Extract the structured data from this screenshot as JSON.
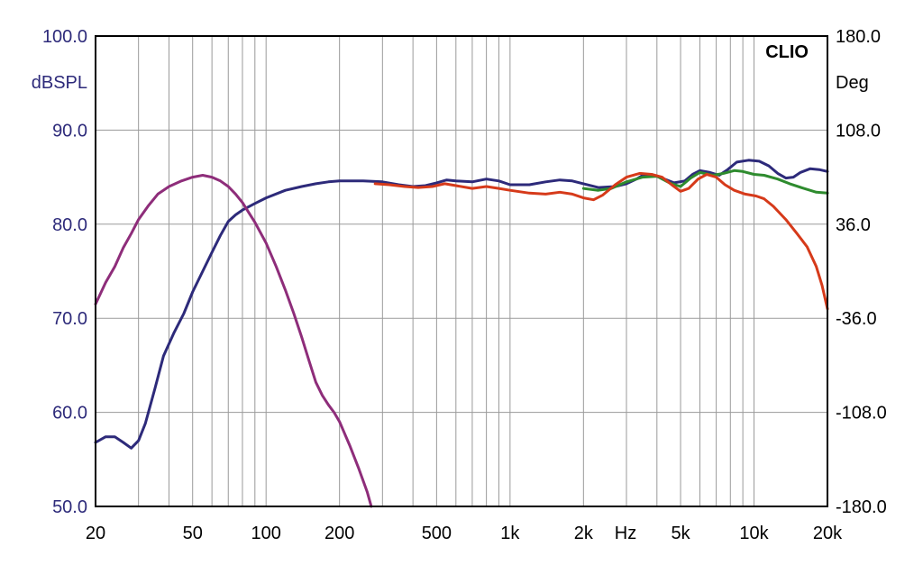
{
  "chart_data": {
    "type": "line",
    "brand": "CLIO",
    "x_scale": "log",
    "x_range": [
      20,
      20000
    ],
    "x_unit": "Hz",
    "x_ticks": [
      {
        "value": 20,
        "label": "20"
      },
      {
        "value": 50,
        "label": "50"
      },
      {
        "value": 100,
        "label": "100"
      },
      {
        "value": 200,
        "label": "200"
      },
      {
        "value": 500,
        "label": "500"
      },
      {
        "value": 1000,
        "label": "1k"
      },
      {
        "value": 2000,
        "label": "2k"
      },
      {
        "value": 5000,
        "label": "5k"
      },
      {
        "value": 10000,
        "label": "10k"
      },
      {
        "value": 20000,
        "label": "20k"
      }
    ],
    "y_left": {
      "label": "dBSPL",
      "range": [
        50,
        100
      ],
      "ticks": [
        "100.0",
        "90.0",
        "80.0",
        "70.0",
        "60.0",
        "50.0"
      ]
    },
    "y_right": {
      "label": "Deg",
      "range": [
        -180,
        180
      ],
      "ticks": [
        "180.0",
        "108.0",
        "36.0",
        "-36.0",
        "-108.0",
        "-180.0"
      ]
    },
    "grid": true,
    "series": [
      {
        "color": "#2d2a7a",
        "points": [
          [
            20,
            56.8
          ],
          [
            22,
            57.4
          ],
          [
            24,
            57.4
          ],
          [
            26,
            56.8
          ],
          [
            28,
            56.2
          ],
          [
            30,
            57.0
          ],
          [
            32,
            58.8
          ],
          [
            35,
            62.5
          ],
          [
            38,
            66.0
          ],
          [
            42,
            68.5
          ],
          [
            46,
            70.5
          ],
          [
            50,
            72.8
          ],
          [
            55,
            75.0
          ],
          [
            60,
            77.0
          ],
          [
            65,
            78.8
          ],
          [
            70,
            80.3
          ],
          [
            75,
            81.0
          ],
          [
            80,
            81.5
          ],
          [
            90,
            82.2
          ],
          [
            100,
            82.8
          ],
          [
            120,
            83.6
          ],
          [
            140,
            84.0
          ],
          [
            160,
            84.3
          ],
          [
            180,
            84.5
          ],
          [
            200,
            84.6
          ],
          [
            250,
            84.6
          ],
          [
            300,
            84.5
          ],
          [
            350,
            84.2
          ],
          [
            400,
            84.0
          ],
          [
            450,
            84.1
          ],
          [
            500,
            84.4
          ],
          [
            550,
            84.7
          ],
          [
            600,
            84.6
          ],
          [
            700,
            84.5
          ],
          [
            800,
            84.8
          ],
          [
            900,
            84.6
          ],
          [
            1000,
            84.2
          ],
          [
            1200,
            84.2
          ],
          [
            1400,
            84.5
          ],
          [
            1600,
            84.7
          ],
          [
            1800,
            84.6
          ],
          [
            2000,
            84.3
          ],
          [
            2300,
            83.9
          ],
          [
            2700,
            84.0
          ],
          [
            3000,
            84.3
          ],
          [
            3300,
            84.8
          ],
          [
            3500,
            85.2
          ],
          [
            3800,
            85.3
          ],
          [
            4200,
            84.9
          ],
          [
            4700,
            84.4
          ],
          [
            5200,
            84.6
          ],
          [
            5600,
            85.3
          ],
          [
            6000,
            85.7
          ],
          [
            6600,
            85.5
          ],
          [
            7200,
            85.2
          ],
          [
            7800,
            85.8
          ],
          [
            8500,
            86.6
          ],
          [
            9500,
            86.8
          ],
          [
            10500,
            86.7
          ],
          [
            11500,
            86.2
          ],
          [
            12500,
            85.4
          ],
          [
            13500,
            84.9
          ],
          [
            14500,
            85.0
          ],
          [
            15500,
            85.5
          ],
          [
            17000,
            85.9
          ],
          [
            18500,
            85.8
          ],
          [
            20000,
            85.6
          ]
        ]
      },
      {
        "color": "#2e8b2e",
        "points": [
          [
            2000,
            83.8
          ],
          [
            2300,
            83.6
          ],
          [
            2600,
            83.8
          ],
          [
            3000,
            84.5
          ],
          [
            3500,
            85.0
          ],
          [
            4000,
            85.1
          ],
          [
            4500,
            84.4
          ],
          [
            5000,
            84.0
          ],
          [
            5500,
            84.9
          ],
          [
            6000,
            85.5
          ],
          [
            6800,
            85.2
          ],
          [
            7500,
            85.4
          ],
          [
            8300,
            85.7
          ],
          [
            9000,
            85.6
          ],
          [
            10000,
            85.3
          ],
          [
            11000,
            85.2
          ],
          [
            12500,
            84.8
          ],
          [
            14000,
            84.3
          ],
          [
            16000,
            83.8
          ],
          [
            18000,
            83.4
          ],
          [
            20000,
            83.3
          ]
        ]
      },
      {
        "color": "#d63a1a",
        "points": [
          [
            280,
            84.3
          ],
          [
            320,
            84.2
          ],
          [
            370,
            84.0
          ],
          [
            420,
            83.9
          ],
          [
            480,
            84.0
          ],
          [
            540,
            84.3
          ],
          [
            600,
            84.1
          ],
          [
            700,
            83.8
          ],
          [
            800,
            84.0
          ],
          [
            900,
            83.8
          ],
          [
            1000,
            83.6
          ],
          [
            1200,
            83.3
          ],
          [
            1400,
            83.2
          ],
          [
            1600,
            83.4
          ],
          [
            1800,
            83.2
          ],
          [
            2000,
            82.8
          ],
          [
            2200,
            82.6
          ],
          [
            2400,
            83.1
          ],
          [
            2700,
            84.2
          ],
          [
            3000,
            85.0
          ],
          [
            3400,
            85.4
          ],
          [
            3800,
            85.3
          ],
          [
            4200,
            85.0
          ],
          [
            4600,
            84.2
          ],
          [
            5000,
            83.5
          ],
          [
            5400,
            83.8
          ],
          [
            5900,
            84.8
          ],
          [
            6400,
            85.3
          ],
          [
            7000,
            85.0
          ],
          [
            7600,
            84.2
          ],
          [
            8300,
            83.6
          ],
          [
            9200,
            83.2
          ],
          [
            10200,
            83.0
          ],
          [
            11000,
            82.7
          ],
          [
            12000,
            81.9
          ],
          [
            13500,
            80.5
          ],
          [
            15000,
            79.0
          ],
          [
            16500,
            77.6
          ],
          [
            18000,
            75.5
          ],
          [
            19000,
            73.5
          ],
          [
            20000,
            71.0
          ]
        ]
      },
      {
        "color": "#8e2d7a",
        "points": [
          [
            20,
            71.5
          ],
          [
            22,
            73.8
          ],
          [
            24,
            75.5
          ],
          [
            26,
            77.5
          ],
          [
            28,
            79.0
          ],
          [
            30,
            80.5
          ],
          [
            33,
            82.0
          ],
          [
            36,
            83.2
          ],
          [
            40,
            84.0
          ],
          [
            45,
            84.6
          ],
          [
            50,
            85.0
          ],
          [
            55,
            85.2
          ],
          [
            60,
            85.0
          ],
          [
            65,
            84.6
          ],
          [
            70,
            84.0
          ],
          [
            75,
            83.2
          ],
          [
            80,
            82.3
          ],
          [
            90,
            80.2
          ],
          [
            100,
            78.0
          ],
          [
            110,
            75.5
          ],
          [
            120,
            73.0
          ],
          [
            130,
            70.5
          ],
          [
            140,
            68.0
          ],
          [
            150,
            65.5
          ],
          [
            160,
            63.2
          ],
          [
            170,
            61.8
          ],
          [
            180,
            60.8
          ],
          [
            190,
            60.0
          ],
          [
            200,
            59.0
          ],
          [
            220,
            56.5
          ],
          [
            240,
            54.0
          ],
          [
            260,
            51.5
          ],
          [
            270,
            50.0
          ]
        ]
      }
    ]
  }
}
